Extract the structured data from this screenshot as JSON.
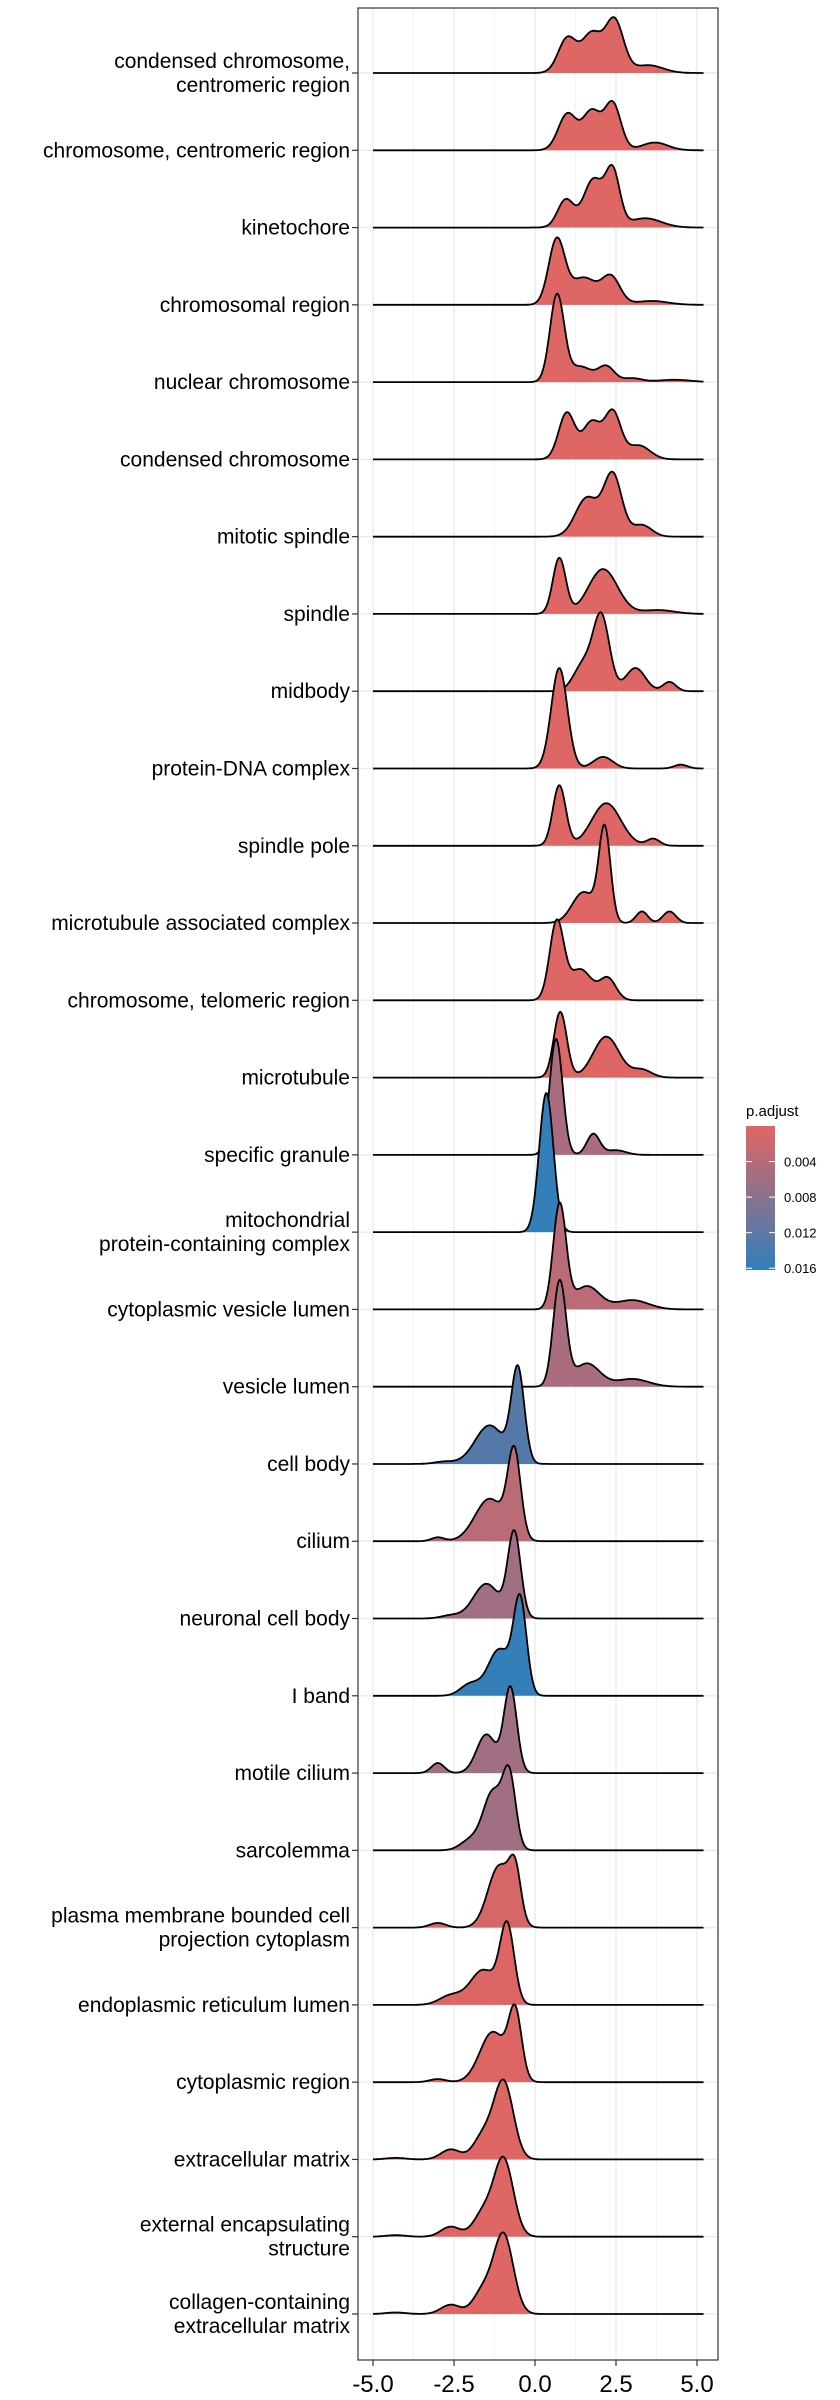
{
  "chart_data": {
    "type": "ridgeline",
    "title": "",
    "xlabel": "",
    "ylabel": "",
    "xlim": [
      -5.0,
      5.2
    ],
    "x_ticks": [
      -5.0,
      -2.5,
      0.0,
      2.5,
      5.0
    ],
    "x_tick_labels": [
      "-5.0",
      "-2.5",
      "0.0",
      "2.5",
      "5.0"
    ],
    "grid": true,
    "density_model": "sum of gaussian components [mean, sd, peak height in row units]",
    "legend": {
      "title": "p.adjust",
      "position": "right",
      "range": [
        0.0,
        0.0162
      ],
      "ticks": [
        0.004,
        0.008,
        0.012,
        0.016
      ],
      "tick_labels": [
        "0.004",
        "0.008",
        "0.012",
        "0.016"
      ],
      "low_color": "#e06663",
      "high_color": "#327eba"
    },
    "series": [
      {
        "name": [
          "condensed chromosome,",
          "centromeric region"
        ],
        "p_adjust": 0.0002,
        "components": [
          [
            1.0,
            0.28,
            0.45
          ],
          [
            1.75,
            0.3,
            0.5
          ],
          [
            2.45,
            0.28,
            0.68
          ],
          [
            3.5,
            0.45,
            0.1
          ]
        ]
      },
      {
        "name": [
          "chromosome, centromeric region"
        ],
        "p_adjust": 0.0002,
        "components": [
          [
            1.0,
            0.28,
            0.47
          ],
          [
            1.75,
            0.28,
            0.5
          ],
          [
            2.4,
            0.25,
            0.6
          ],
          [
            3.7,
            0.4,
            0.1
          ]
        ]
      },
      {
        "name": [
          "kinetochore"
        ],
        "p_adjust": 0.0002,
        "components": [
          [
            0.95,
            0.25,
            0.36
          ],
          [
            1.8,
            0.3,
            0.62
          ],
          [
            2.4,
            0.22,
            0.7
          ],
          [
            3.4,
            0.5,
            0.12
          ]
        ]
      },
      {
        "name": [
          "chromosomal region"
        ],
        "p_adjust": 0.0002,
        "components": [
          [
            0.67,
            0.25,
            0.83
          ],
          [
            1.5,
            0.4,
            0.35
          ],
          [
            2.35,
            0.28,
            0.35
          ],
          [
            3.6,
            0.5,
            0.05
          ]
        ]
      },
      {
        "name": [
          "nuclear chromosome"
        ],
        "p_adjust": 0.0002,
        "components": [
          [
            0.68,
            0.22,
            1.12
          ],
          [
            1.4,
            0.35,
            0.2
          ],
          [
            2.2,
            0.25,
            0.2
          ],
          [
            3.0,
            0.3,
            0.05
          ],
          [
            4.3,
            0.5,
            0.03
          ]
        ]
      },
      {
        "name": [
          "condensed chromosome"
        ],
        "p_adjust": 0.0002,
        "components": [
          [
            0.98,
            0.25,
            0.6
          ],
          [
            1.75,
            0.28,
            0.48
          ],
          [
            2.4,
            0.25,
            0.6
          ],
          [
            3.2,
            0.35,
            0.18
          ]
        ]
      },
      {
        "name": [
          "mitotic spindle"
        ],
        "p_adjust": 0.0002,
        "components": [
          [
            1.6,
            0.35,
            0.5
          ],
          [
            2.4,
            0.28,
            0.8
          ],
          [
            3.3,
            0.3,
            0.15
          ]
        ]
      },
      {
        "name": [
          "spindle"
        ],
        "p_adjust": 0.0002,
        "components": [
          [
            0.75,
            0.2,
            0.72
          ],
          [
            2.1,
            0.45,
            0.58
          ],
          [
            3.8,
            0.5,
            0.05
          ]
        ]
      },
      {
        "name": [
          "midbody"
        ],
        "p_adjust": 0.0002,
        "components": [
          [
            1.5,
            0.3,
            0.35
          ],
          [
            2.05,
            0.25,
            0.95
          ],
          [
            3.1,
            0.3,
            0.3
          ],
          [
            4.15,
            0.2,
            0.12
          ]
        ]
      },
      {
        "name": [
          "protein-DNA complex"
        ],
        "p_adjust": 0.0002,
        "components": [
          [
            0.75,
            0.25,
            1.3
          ],
          [
            2.1,
            0.3,
            0.15
          ],
          [
            4.5,
            0.2,
            0.05
          ]
        ]
      },
      {
        "name": [
          "spindle pole"
        ],
        "p_adjust": 0.0002,
        "components": [
          [
            0.75,
            0.2,
            0.78
          ],
          [
            2.2,
            0.45,
            0.55
          ],
          [
            3.65,
            0.2,
            0.09
          ]
        ]
      },
      {
        "name": [
          "microtubule associated complex"
        ],
        "p_adjust": 0.0002,
        "components": [
          [
            1.5,
            0.35,
            0.4
          ],
          [
            2.15,
            0.18,
            1.2
          ],
          [
            3.3,
            0.18,
            0.15
          ],
          [
            4.15,
            0.2,
            0.15
          ]
        ]
      },
      {
        "name": [
          "chromosome, telomeric region"
        ],
        "p_adjust": 0.0002,
        "components": [
          [
            0.67,
            0.22,
            1.0
          ],
          [
            1.4,
            0.35,
            0.4
          ],
          [
            2.25,
            0.25,
            0.28
          ]
        ]
      },
      {
        "name": [
          "microtubule"
        ],
        "p_adjust": 0.0002,
        "components": [
          [
            0.78,
            0.2,
            0.85
          ],
          [
            2.2,
            0.4,
            0.53
          ],
          [
            3.3,
            0.3,
            0.1
          ]
        ]
      },
      {
        "name": [
          "specific granule"
        ],
        "p_adjust": 0.005,
        "components": [
          [
            0.65,
            0.2,
            1.5
          ],
          [
            1.8,
            0.2,
            0.27
          ],
          [
            2.5,
            0.3,
            0.06
          ]
        ]
      },
      {
        "name": [
          "mitochondrial",
          "protein-containing complex"
        ],
        "p_adjust": 0.016,
        "components": [
          [
            0.35,
            0.22,
            1.8
          ]
        ]
      },
      {
        "name": [
          "cytoplasmic vesicle lumen"
        ],
        "p_adjust": 0.0035,
        "components": [
          [
            0.76,
            0.2,
            1.35
          ],
          [
            1.6,
            0.4,
            0.3
          ],
          [
            3.0,
            0.5,
            0.12
          ]
        ]
      },
      {
        "name": [
          "vesicle lumen"
        ],
        "p_adjust": 0.005,
        "components": [
          [
            0.76,
            0.2,
            1.35
          ],
          [
            1.6,
            0.4,
            0.3
          ],
          [
            3.0,
            0.5,
            0.1
          ]
        ]
      },
      {
        "name": [
          "cell body"
        ],
        "p_adjust": 0.013,
        "components": [
          [
            -0.53,
            0.2,
            1.2
          ],
          [
            -1.4,
            0.45,
            0.5
          ],
          [
            -2.8,
            0.3,
            0.03
          ]
        ]
      },
      {
        "name": [
          "cilium"
        ],
        "p_adjust": 0.0035,
        "components": [
          [
            -0.64,
            0.2,
            1.1
          ],
          [
            -1.4,
            0.45,
            0.55
          ],
          [
            -3.0,
            0.2,
            0.05
          ]
        ]
      },
      {
        "name": [
          "neuronal cell body"
        ],
        "p_adjust": 0.006,
        "components": [
          [
            -0.64,
            0.2,
            1.1
          ],
          [
            -1.5,
            0.4,
            0.45
          ],
          [
            -2.6,
            0.3,
            0.04
          ]
        ]
      },
      {
        "name": [
          "I band"
        ],
        "p_adjust": 0.016,
        "components": [
          [
            -0.46,
            0.2,
            1.2
          ],
          [
            -1.1,
            0.35,
            0.6
          ],
          [
            -2.0,
            0.3,
            0.15
          ]
        ]
      },
      {
        "name": [
          "motile cilium"
        ],
        "p_adjust": 0.006,
        "components": [
          [
            -0.76,
            0.2,
            1.1
          ],
          [
            -1.5,
            0.3,
            0.5
          ],
          [
            -3.0,
            0.2,
            0.13
          ]
        ]
      },
      {
        "name": [
          "sarcolemma"
        ],
        "p_adjust": 0.006,
        "components": [
          [
            -0.79,
            0.2,
            0.9
          ],
          [
            -1.3,
            0.3,
            0.75
          ],
          [
            -2.0,
            0.3,
            0.13
          ]
        ]
      },
      {
        "name": [
          "plasma membrane bounded cell",
          "projection cytoplasm"
        ],
        "p_adjust": 0.001,
        "components": [
          [
            -0.61,
            0.18,
            0.6
          ],
          [
            -1.1,
            0.35,
            0.8
          ],
          [
            -3.0,
            0.25,
            0.06
          ]
        ]
      },
      {
        "name": [
          "endoplasmic reticulum lumen"
        ],
        "p_adjust": 0.0003,
        "components": [
          [
            -0.86,
            0.22,
            1.0
          ],
          [
            -1.6,
            0.4,
            0.45
          ],
          [
            -2.6,
            0.35,
            0.12
          ]
        ]
      },
      {
        "name": [
          "cytoplasmic region"
        ],
        "p_adjust": 0.0003,
        "components": [
          [
            -0.61,
            0.2,
            0.85
          ],
          [
            -1.3,
            0.4,
            0.65
          ],
          [
            -3.0,
            0.25,
            0.04
          ]
        ]
      },
      {
        "name": [
          "extracellular matrix"
        ],
        "p_adjust": 0.0002,
        "components": [
          [
            -0.97,
            0.3,
            1.0
          ],
          [
            -1.6,
            0.3,
            0.3
          ],
          [
            -2.6,
            0.3,
            0.13
          ],
          [
            -4.3,
            0.3,
            0.02
          ]
        ]
      },
      {
        "name": [
          "external encapsulating",
          "structure"
        ],
        "p_adjust": 0.0002,
        "components": [
          [
            -0.97,
            0.3,
            1.0
          ],
          [
            -1.6,
            0.3,
            0.3
          ],
          [
            -2.6,
            0.3,
            0.13
          ],
          [
            -4.3,
            0.3,
            0.02
          ]
        ]
      },
      {
        "name": [
          "collagen-containing",
          "extracellular matrix"
        ],
        "p_adjust": 0.0002,
        "components": [
          [
            -0.97,
            0.3,
            1.02
          ],
          [
            -1.6,
            0.3,
            0.3
          ],
          [
            -2.6,
            0.3,
            0.12
          ],
          [
            -4.3,
            0.3,
            0.02
          ]
        ]
      }
    ]
  }
}
